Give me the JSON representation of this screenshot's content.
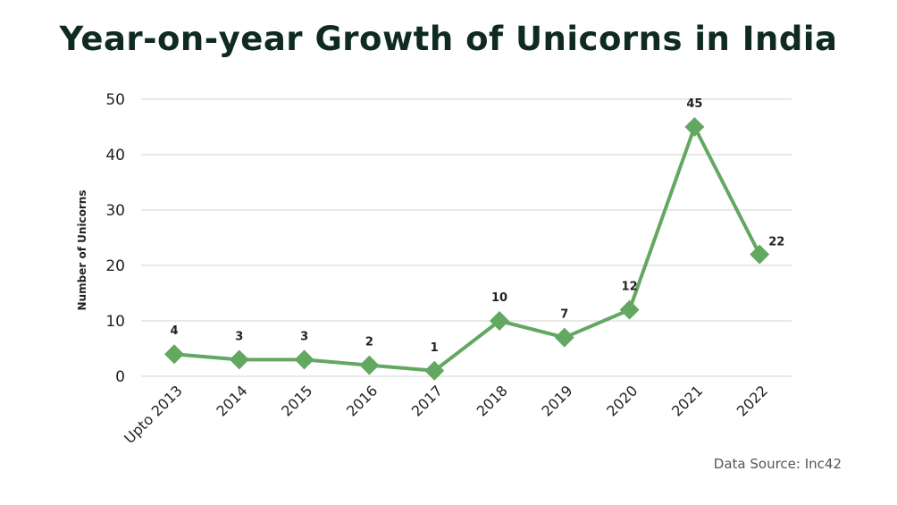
{
  "chart_data": {
    "type": "line",
    "title": "Year-on-year Growth of Unicorns in India",
    "ylabel": "Number of Unicorns",
    "xlabel": "",
    "categories": [
      "Upto 2013",
      "2014",
      "2015",
      "2016",
      "2017",
      "2018",
      "2019",
      "2020",
      "2021",
      "2022"
    ],
    "values": [
      4,
      3,
      3,
      2,
      1,
      10,
      7,
      12,
      45,
      22
    ],
    "data_labels": [
      "4",
      "3",
      "3",
      "2",
      "1",
      "10",
      "7",
      "12",
      "45",
      "22"
    ],
    "ylim": [
      0,
      50
    ],
    "yticks": [
      0,
      10,
      20,
      30,
      40,
      50
    ],
    "ytick_labels": [
      "0",
      "10",
      "20",
      "30",
      "40",
      "50"
    ],
    "grid": true,
    "marker": "diamond",
    "series_color": "#63a861",
    "source": "Data Source: Inc42"
  }
}
